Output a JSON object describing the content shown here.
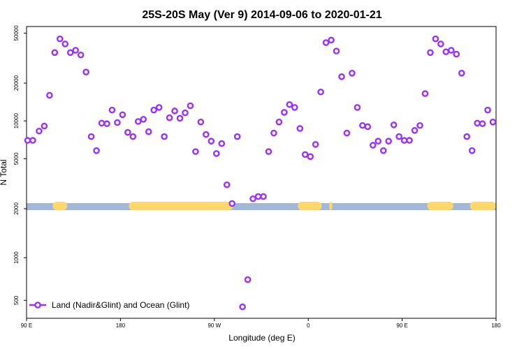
{
  "chart_data": {
    "type": "scatter",
    "title": "25S-20S May (Ver 9)   2014-09-06 to 2020-01-21",
    "xlabel": "Longitude (deg E)",
    "ylabel": "N Total",
    "y_scale": "log",
    "ylim": [
      410,
      60000
    ],
    "x_ticks": [
      {
        "lon": 90,
        "label": "90 E"
      },
      {
        "lon": 180,
        "label": "180"
      },
      {
        "lon": 270,
        "label": "90 W"
      },
      {
        "lon": 360,
        "label": "0"
      },
      {
        "lon": 450,
        "label": "90 E"
      },
      {
        "lon": 540,
        "label": "180"
      }
    ],
    "y_ticks": [
      500,
      1000,
      2000,
      5000,
      10000,
      20000,
      50000
    ],
    "legend": {
      "label": "Land (Nadir&Glint) and Ocean (Glint)",
      "position": "bottom-left"
    },
    "colors": {
      "series": "#9b30ff",
      "ocean": "#a2b8d9",
      "land": "#ffd76b"
    },
    "surface_strip": [
      {
        "type": "land",
        "from": 115,
        "to": 129
      },
      {
        "type": "land",
        "from": 188,
        "to": 288
      },
      {
        "type": "land",
        "from": 273,
        "to": 282
      },
      {
        "type": "land",
        "from": 350,
        "to": 373
      },
      {
        "type": "land",
        "from": 380,
        "to": 383
      },
      {
        "type": "land",
        "from": 474,
        "to": 499
      },
      {
        "type": "land",
        "from": 515,
        "to": 540
      }
    ],
    "series": [
      {
        "name": "Land (Nadir&Glint) and Ocean (Glint)",
        "x": [
          91,
          96,
          102,
          107,
          112,
          117,
          122,
          127,
          132,
          137,
          142,
          147,
          152,
          157,
          162,
          167,
          172,
          177,
          182,
          187,
          192,
          197,
          202,
          207,
          212,
          217,
          222,
          227,
          232,
          237,
          242,
          247,
          252,
          257,
          262,
          267,
          272,
          277,
          282,
          287,
          292,
          297,
          302,
          307,
          312,
          317,
          322,
          327,
          332,
          337,
          342,
          347,
          352,
          357,
          362,
          367,
          372,
          377,
          382,
          387,
          392,
          397,
          402,
          407,
          412,
          417,
          422,
          427,
          432,
          437,
          442,
          447,
          452,
          457,
          462,
          467,
          472,
          477,
          482,
          487,
          492,
          497,
          502,
          507,
          512,
          517,
          522,
          527,
          532,
          537
        ],
        "y": [
          7000,
          7000,
          8300,
          9100,
          16000,
          35000,
          45000,
          41000,
          35000,
          36500,
          33500,
          24500,
          7500,
          5800,
          9600,
          9500,
          12200,
          9700,
          11200,
          8100,
          7500,
          9900,
          10300,
          8200,
          12200,
          12800,
          7500,
          10600,
          12000,
          10500,
          11600,
          13200,
          5700,
          9800,
          7800,
          6900,
          5500,
          6600,
          3100,
          2200,
          7500,
          450,
          700,
          2400,
          2500,
          2500,
          5700,
          8000,
          9800,
          11700,
          13500,
          12800,
          8700,
          5400,
          5200,
          6500,
          17000,
          42000,
          44000,
          36000,
          22500,
          8000,
          24000,
          12800,
          9200,
          9000,
          6400,
          6900,
          5800,
          6900,
          9300,
          7500,
          7000,
          7000,
          8400,
          9200,
          16500,
          35000,
          45000,
          41000,
          35500,
          36500,
          34000,
          24000,
          7500,
          5800,
          9600,
          9500,
          12200,
          9800
        ]
      }
    ]
  }
}
